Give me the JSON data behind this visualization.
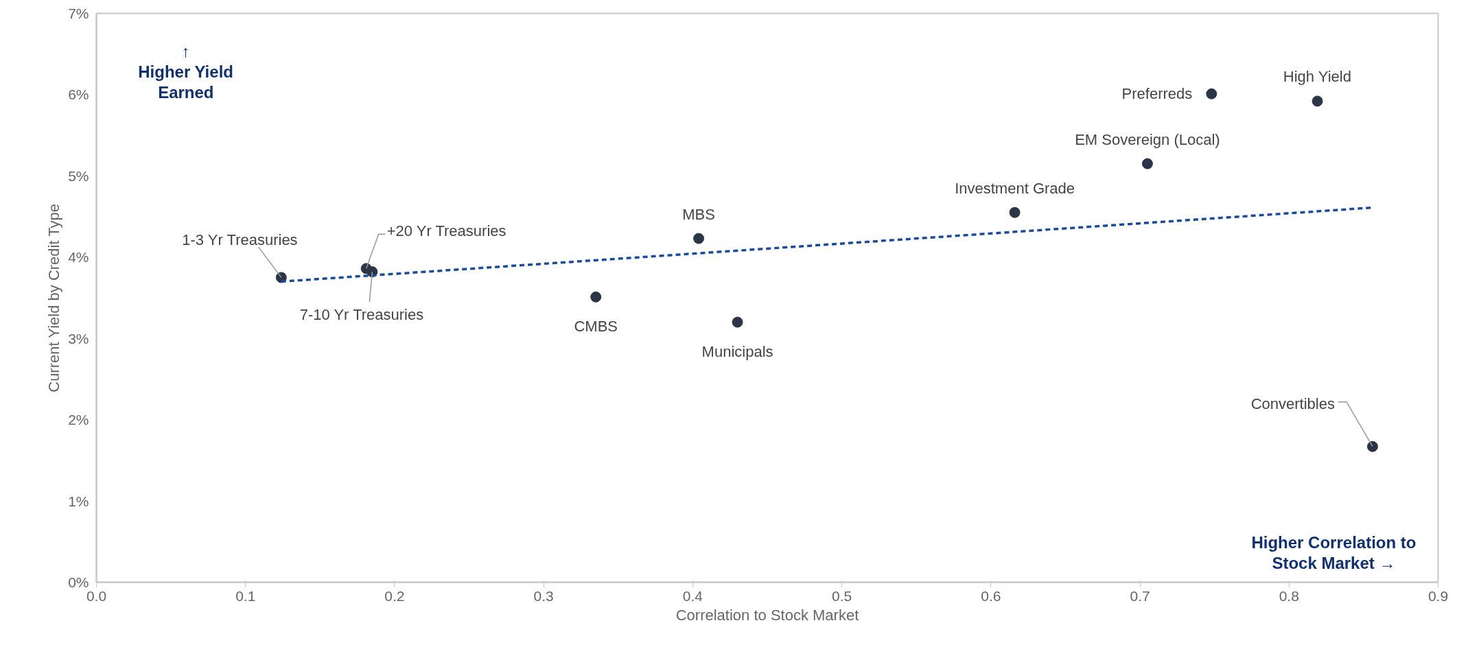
{
  "chart_data": {
    "type": "scatter",
    "xlabel": "Correlation to Stock Market",
    "ylabel": "Current Yield by Credit Type",
    "x": [
      0.124,
      0.181,
      0.185,
      0.335,
      0.404,
      0.43,
      0.616,
      0.705,
      0.748,
      0.819,
      0.856
    ],
    "series": [
      {
        "color": "#2b3547",
        "values": [
          3.75,
          3.86,
          3.82,
          3.51,
          4.23,
          3.2,
          4.55,
          5.15,
          6.01,
          5.92,
          1.67
        ]
      },
      {
        "type": "line",
        "color": "#1a4a9c",
        "line_style": "dashed",
        "marker": "none",
        "x": [
          0.124,
          0.856
        ],
        "values": [
          3.7,
          4.61
        ]
      }
    ],
    "annotations": [
      {
        "text": "1-3 Yr Treasuries",
        "x": 0.124,
        "y": 3.75
      },
      {
        "text": "+20 Yr Treasuries",
        "x": 0.181,
        "y": 3.86
      },
      {
        "text": "7-10 Yr Treasuries",
        "x": 0.185,
        "y": 3.82
      },
      {
        "text": "CMBS",
        "x": 0.335,
        "y": 3.51
      },
      {
        "text": "MBS",
        "x": 0.404,
        "y": 4.23
      },
      {
        "text": "Municipals",
        "x": 0.43,
        "y": 3.2
      },
      {
        "text": "Investment Grade",
        "x": 0.616,
        "y": 4.55
      },
      {
        "text": "EM Sovereign (Local)",
        "x": 0.705,
        "y": 5.15
      },
      {
        "text": "Preferreds",
        "x": 0.748,
        "y": 6.01
      },
      {
        "text": "High Yield",
        "x": 0.819,
        "y": 5.92
      },
      {
        "text": "Convertibles",
        "x": 0.856,
        "y": 1.67
      },
      "↑\nHigher Yield\nEarned",
      "Higher Correlation to\nStock Market →"
    ],
    "xlim": [
      0,
      0.9
    ],
    "xticks": [
      {
        "value": 0,
        "label": "0.0"
      },
      0.1,
      0.2,
      0.3,
      0.4,
      0.5,
      0.6,
      0.7,
      0.8,
      0.9
    ],
    "ylim": [
      0,
      7
    ],
    "yticks": [
      {
        "value": 0,
        "label": "0%"
      },
      {
        "value": 1,
        "label": "1%"
      },
      {
        "value": 2,
        "label": "2%"
      },
      {
        "value": 3,
        "label": "3%"
      },
      {
        "value": 4,
        "label": "4%"
      },
      {
        "value": 5,
        "label": "5%"
      },
      {
        "value": 6,
        "label": "6%"
      },
      {
        "value": 7,
        "label": "7%"
      }
    ],
    "marker": "circle",
    "grid": false
  }
}
